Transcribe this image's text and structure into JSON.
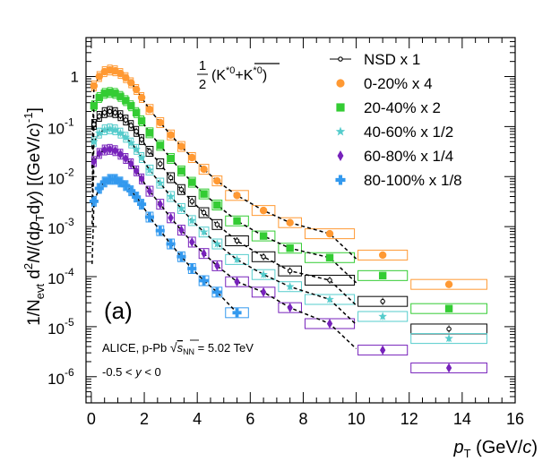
{
  "chart_data": {
    "type": "scatter",
    "panel_label": "(a)",
    "xlabel": {
      "main": "p",
      "sub": "T",
      "unit": " (GeV/",
      "unit_c": "c",
      "close": ")"
    },
    "ylabel": "1/N_evt d²N/(dp_T dy) [(GeV/c)⁻¹]",
    "ylabel_parts": {
      "a": "1/N",
      "a_sub": "evt",
      "b": " d",
      "b_sup": "2",
      "c": "N",
      "d": "/(d",
      "e": "p",
      "e_sub": "T",
      "f": "d",
      "g": "y",
      "h": ") [(GeV/",
      "i": "c",
      "j": ")",
      "j_sup": "-1",
      "k": "]"
    },
    "x_scale": "linear",
    "y_scale": "log",
    "xlim": [
      -0.2,
      16
    ],
    "ylim": [
      3e-07,
      6
    ],
    "x_ticks": [
      0,
      2,
      4,
      6,
      8,
      10,
      12,
      14,
      16
    ],
    "x_tick_labels": [
      "0",
      "2",
      "4",
      "6",
      "8",
      "10",
      "12",
      "14",
      "16"
    ],
    "y_ticks": [
      1e-06,
      1e-05,
      0.0001,
      0.001,
      0.01,
      0.1,
      1
    ],
    "y_tick_labels": [
      {
        "base": "10",
        "exp": "-6"
      },
      {
        "base": "10",
        "exp": "-5"
      },
      {
        "base": "10",
        "exp": "-4"
      },
      {
        "base": "10",
        "exp": "-3"
      },
      {
        "base": "10",
        "exp": "-2"
      },
      {
        "base": "10",
        "exp": "-1"
      },
      {
        "base": "1",
        "exp": ""
      }
    ],
    "annotation_particle": {
      "num": "1",
      "den": "2",
      "text": "(K*⁰ + anti-K*⁰)"
    },
    "annotation_system": [
      "ALICE, p-Pb √s_NN = 5.02 TeV",
      "-0.5 < y < 0"
    ],
    "x_bin_edges": [
      0,
      0.2,
      0.4,
      0.6,
      0.8,
      1.0,
      1.2,
      1.4,
      1.6,
      1.8,
      2.0,
      2.4,
      2.8,
      3.2,
      3.6,
      4.0,
      4.5,
      5.0,
      6.0,
      7.0,
      8.0,
      10.0,
      12.0,
      15.0
    ],
    "x_values": [
      0.1,
      0.3,
      0.5,
      0.7,
      0.9,
      1.1,
      1.3,
      1.5,
      1.7,
      1.9,
      2.2,
      2.6,
      3.0,
      3.4,
      3.8,
      4.25,
      4.75,
      5.5,
      6.5,
      7.5,
      9.0,
      11.0,
      13.5
    ],
    "series": [
      {
        "name": "NSD x 1",
        "color": "#000000",
        "marker": "open-circle",
        "first_bin": 1,
        "values": [
          0.11,
          0.16,
          0.19,
          0.2,
          0.19,
          0.165,
          0.135,
          0.105,
          0.08,
          0.055,
          0.032,
          0.018,
          0.0095,
          0.0055,
          0.0032,
          0.0019,
          0.0011,
          0.00052,
          0.00025,
          0.00013,
          8.5e-05,
          3.2e-05,
          9e-06
        ]
      },
      {
        "name": "0-20% x 4",
        "color": "#ff9933",
        "marker": "filled-circle",
        "first_bin": 1,
        "values": [
          0.65,
          1.0,
          1.25,
          1.35,
          1.3,
          1.15,
          0.95,
          0.75,
          0.55,
          0.38,
          0.22,
          0.12,
          0.068,
          0.04,
          0.024,
          0.014,
          0.0082,
          0.0042,
          0.0021,
          0.0012,
          0.00072,
          0.00027,
          7e-05
        ]
      },
      {
        "name": "20-40% x 2",
        "color": "#33cc33",
        "marker": "filled-square",
        "first_bin": 1,
        "values": [
          0.26,
          0.38,
          0.46,
          0.48,
          0.46,
          0.4,
          0.33,
          0.26,
          0.19,
          0.13,
          0.075,
          0.042,
          0.023,
          0.013,
          0.0077,
          0.0045,
          0.0027,
          0.0013,
          0.00065,
          0.00037,
          0.00024,
          0.000105,
          2.3e-05
        ]
      },
      {
        "name": "40-60% x 1/2",
        "color": "#55cccc",
        "marker": "star",
        "first_bin": 1,
        "values": [
          0.05,
          0.074,
          0.086,
          0.09,
          0.086,
          0.074,
          0.061,
          0.047,
          0.035,
          0.024,
          0.0135,
          0.0074,
          0.004,
          0.0023,
          0.00132,
          0.00078,
          0.00045,
          0.00022,
          0.00011,
          6.3e-05,
          3.5e-05,
          1.6e-05,
          5.8e-06
        ]
      },
      {
        "name": "60-80% x 1/4",
        "color": "#7722bb",
        "marker": "filled-diamond",
        "first_bin": 1,
        "values": [
          0.02,
          0.029,
          0.034,
          0.035,
          0.033,
          0.028,
          0.023,
          0.018,
          0.013,
          0.009,
          0.0051,
          0.0028,
          0.0015,
          0.00085,
          0.00049,
          0.00029,
          0.000165,
          7.9e-05,
          4.9e-05,
          2.4e-05,
          1.15e-05,
          3.4e-06,
          1.5e-06
        ]
      },
      {
        "name": "80-100% x 1/8",
        "color": "#3399ee",
        "marker": "filled-cross",
        "first_bin": 0,
        "values": [
          0.0032,
          0.0058,
          0.0078,
          0.0088,
          0.0088,
          0.0078,
          0.0066,
          0.0052,
          0.0039,
          0.0028,
          0.00155,
          0.00083,
          0.00045,
          0.00025,
          0.000145,
          8.3e-05,
          4.9e-05,
          1.9e-05
        ]
      }
    ]
  }
}
